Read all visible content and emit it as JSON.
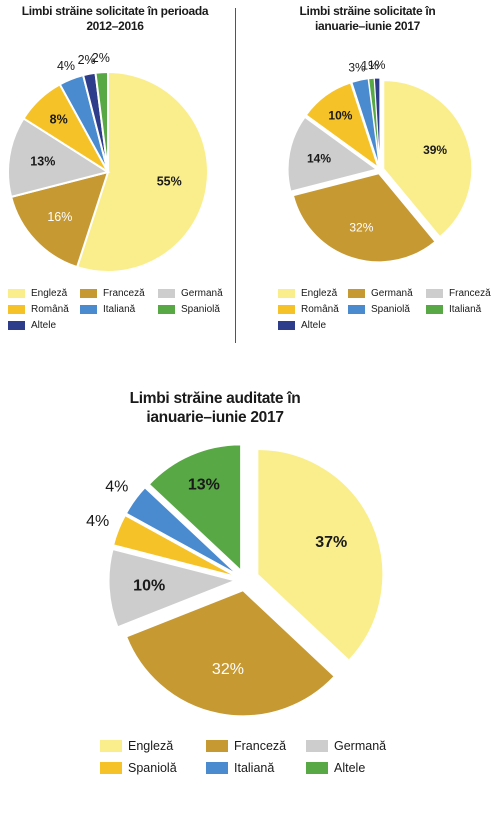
{
  "chart_data": [
    {
      "type": "pie",
      "title": "Limbi străine solicitate în perioada\n2012–2016",
      "slices": [
        {
          "label": "Engleză",
          "value": 55,
          "text": "55%",
          "color": "#faee8c",
          "bold": true,
          "light": false
        },
        {
          "label": "Franceză",
          "value": 16,
          "text": "16%",
          "color": "#c69933",
          "bold": false,
          "light": true
        },
        {
          "label": "Germană",
          "value": 13,
          "text": "13%",
          "color": "#cdcdcd",
          "bold": true,
          "light": false
        },
        {
          "label": "Română",
          "value": 8,
          "text": "8%",
          "color": "#f5c228",
          "bold": true,
          "light": false
        },
        {
          "label": "Italiană",
          "value": 4,
          "text": "4%",
          "color": "#4a8bd0",
          "bold": false,
          "light": false
        },
        {
          "label": "Altele",
          "value": 2,
          "text": "2%",
          "color": "#2e3c8c",
          "bold": false,
          "light": false
        },
        {
          "label": "Spaniolă",
          "value": 2,
          "text": "2%",
          "color": "#58a845",
          "bold": false,
          "light": false
        }
      ],
      "legend": [
        "Engleză",
        "Franceză",
        "Germană",
        "Română",
        "Italiană",
        "Spaniolă",
        "Altele"
      ]
    },
    {
      "type": "pie",
      "title": "Limbi străine solicitate în\nianuarie–iunie 2017",
      "slices": [
        {
          "label": "Engleză",
          "value": 39,
          "text": "39%",
          "color": "#faee8c",
          "bold": true,
          "light": false
        },
        {
          "label": "Germană",
          "value": 32,
          "text": "32%",
          "color": "#c69933",
          "bold": false,
          "light": true
        },
        {
          "label": "Franceză",
          "value": 14,
          "text": "14%",
          "color": "#cdcdcd",
          "bold": true,
          "light": false
        },
        {
          "label": "Română",
          "value": 10,
          "text": "10%",
          "color": "#f5c228",
          "bold": true,
          "light": false
        },
        {
          "label": "Spaniolă",
          "value": 3,
          "text": "3%",
          "color": "#4a8bd0",
          "bold": false,
          "light": false
        },
        {
          "label": "Italiană",
          "value": 1,
          "text": "1%",
          "color": "#58a845",
          "bold": false,
          "light": false
        },
        {
          "label": "Altele",
          "value": 1,
          "text": "1%",
          "color": "#2e3c8c",
          "bold": false,
          "light": false
        }
      ],
      "legend": [
        "Engleză",
        "Germană",
        "Franceză",
        "Română",
        "Spaniolă",
        "Italiană",
        "Altele"
      ]
    },
    {
      "type": "pie",
      "title": "Limbi străine auditate în\nianuarie–iunie 2017",
      "slices": [
        {
          "label": "Engleză",
          "value": 37,
          "text": "37%",
          "color": "#faee8c",
          "bold": true,
          "light": false
        },
        {
          "label": "Franceză",
          "value": 32,
          "text": "32%",
          "color": "#c69933",
          "bold": false,
          "light": true
        },
        {
          "label": "Germană",
          "value": 10,
          "text": "10%",
          "color": "#cdcdcd",
          "bold": true,
          "light": false
        },
        {
          "label": "Spaniolă",
          "value": 4,
          "text": "4%",
          "color": "#f5c228",
          "bold": false,
          "light": false
        },
        {
          "label": "Italiană",
          "value": 4,
          "text": "4%",
          "color": "#4a8bd0",
          "bold": false,
          "light": false
        },
        {
          "label": "Altele",
          "value": 13,
          "text": "13%",
          "color": "#58a845",
          "bold": true,
          "light": false
        }
      ],
      "legend": [
        "Engleză",
        "Franceză",
        "Germană",
        "Spaniolă",
        "Italiană",
        "Altele"
      ]
    }
  ]
}
